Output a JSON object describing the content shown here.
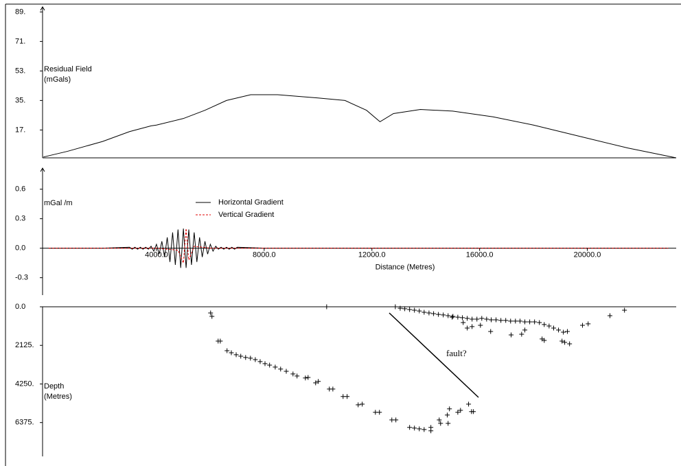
{
  "chart_data": [
    {
      "type": "line",
      "y_label": [
        "Residual Field",
        "(mGals)"
      ],
      "xlim": [
        -230,
        23300
      ],
      "ylim": [
        0,
        90
      ],
      "yticks": [
        {
          "value": 89,
          "label": "89."
        },
        {
          "value": 71,
          "label": "71."
        },
        {
          "value": 53,
          "label": "53."
        },
        {
          "value": 35,
          "label": "35."
        },
        {
          "value": 17,
          "label": "17."
        }
      ],
      "series": [
        {
          "color": "#000000",
          "x": [
            -200,
            700,
            2000,
            3000,
            3800,
            4000,
            5000,
            5800,
            6600,
            7500,
            8500,
            10000,
            11000,
            11800,
            12300,
            12800,
            13800,
            15000,
            16500,
            18000,
            20000,
            21500,
            23300
          ],
          "values": [
            0.5,
            4,
            10,
            16,
            19.5,
            20,
            24,
            29,
            35,
            38.5,
            38.5,
            36.5,
            35,
            29,
            22,
            27,
            29.5,
            28.5,
            25,
            20,
            12,
            6,
            0
          ]
        }
      ]
    },
    {
      "type": "line",
      "y_label": [
        "mGal /m"
      ],
      "x_label": "Distance (Metres)",
      "xlim": [
        -230,
        23300
      ],
      "ylim": [
        -0.47,
        0.8
      ],
      "xticks": [
        {
          "value": 4000,
          "label": "4000.0"
        },
        {
          "value": 8000,
          "label": "8000.0"
        },
        {
          "value": 12000,
          "label": "12000.0"
        },
        {
          "value": 16000,
          "label": "16000.0"
        },
        {
          "value": 20000,
          "label": "20000.0"
        }
      ],
      "yticks": [
        0.6,
        0.3,
        {
          "value": 0,
          "label": "0.0"
        },
        -0.3
      ],
      "legend": true,
      "series": [
        {
          "name": "Horizontal Gradient",
          "color": "#000000",
          "dashed": false,
          "x": [
            0,
            1000,
            2000,
            3000,
            3100,
            3200,
            3300,
            3400,
            3500,
            3600,
            3700,
            3800,
            3900,
            4000,
            4100,
            4200,
            4300,
            4400,
            4500,
            4600,
            4700,
            4800,
            4900,
            5000,
            5100,
            5200,
            5300,
            5400,
            5500,
            5600,
            5700,
            5800,
            5900,
            6000,
            6100,
            6200,
            6300,
            6400,
            6500,
            6600,
            6700,
            6800,
            6900,
            7000,
            8000,
            9000,
            10000,
            11000,
            12000,
            13000,
            14000,
            15000,
            16000,
            17000,
            18000,
            19000,
            20000,
            21000,
            22000,
            23000
          ],
          "values": [
            0,
            0,
            0,
            0.01,
            -0.01,
            0.01,
            -0.01,
            0.01,
            -0.01,
            0.01,
            -0.01,
            0.02,
            -0.03,
            0.04,
            -0.06,
            0.07,
            -0.09,
            0.11,
            -0.14,
            0.16,
            -0.17,
            0.19,
            -0.2,
            0.2,
            -0.2,
            0.19,
            -0.17,
            0.16,
            -0.14,
            0.11,
            -0.09,
            0.07,
            -0.06,
            0.04,
            -0.03,
            0.02,
            -0.01,
            0.01,
            -0.01,
            0.01,
            -0.01,
            0.01,
            -0.01,
            0.01,
            0,
            0,
            0,
            0,
            0,
            0,
            0,
            0,
            0,
            0,
            0,
            0,
            0,
            0,
            0,
            0
          ]
        },
        {
          "name": "Vertical Gradient",
          "color": "#e00000",
          "dashed": true,
          "x": [
            0,
            4000,
            4800,
            5000,
            5100,
            5200,
            5400,
            6000,
            23000
          ],
          "values": [
            0,
            0,
            -0.02,
            -0.15,
            0.2,
            -0.12,
            0.02,
            0,
            0
          ]
        }
      ]
    },
    {
      "type": "scatter",
      "y_label": [
        "Depth",
        "(Metres)"
      ],
      "annotation": "fault?",
      "xlim": [
        -230,
        23300
      ],
      "ylim": [
        0,
        8200
      ],
      "y_inverted": true,
      "color": "#000000",
      "yticks": [
        {
          "value": 0,
          "label": "0.0"
        },
        {
          "value": 2125,
          "label": "2125."
        },
        {
          "value": 4250,
          "label": "4250."
        },
        {
          "value": 6375,
          "label": "6375."
        }
      ],
      "x": [
        6010,
        6060,
        6290,
        6370,
        6620,
        6780,
        6960,
        7130,
        7310,
        7490,
        7670,
        7850,
        8030,
        8200,
        8410,
        8610,
        8820,
        9070,
        9220,
        9530,
        9630,
        9910,
        10010,
        10420,
        10550,
        10930,
        11080,
        11490,
        11640,
        12130,
        12280,
        12740,
        12890,
        13400,
        13580,
        13760,
        13940,
        14190,
        14190,
        14550,
        14830,
        14500,
        14800,
        15190,
        15290,
        15700,
        15770,
        15590,
        14880,
        10320,
        12870,
        13050,
        13220,
        13400,
        13580,
        13760,
        13940,
        14120,
        14290,
        14470,
        14650,
        14830,
        15010,
        15190,
        15360,
        15540,
        15720,
        15900,
        16080,
        16260,
        16430,
        16610,
        16790,
        16970,
        17150,
        17330,
        17500,
        17680,
        17860,
        18040,
        18220,
        18400,
        18580,
        18750,
        18930,
        19110,
        19260,
        14980,
        15390,
        15540,
        15720,
        16030,
        16410,
        17170,
        17560,
        17680,
        18320,
        18400,
        19060,
        19160,
        19340,
        19820,
        20030,
        20840,
        21380
      ],
      "values": [
        340,
        530,
        1890,
        1890,
        2420,
        2530,
        2640,
        2720,
        2790,
        2830,
        2910,
        3020,
        3130,
        3210,
        3320,
        3430,
        3550,
        3700,
        3810,
        3920,
        3890,
        4190,
        4110,
        4530,
        4530,
        4940,
        4940,
        5400,
        5360,
        5810,
        5810,
        6230,
        6230,
        6640,
        6680,
        6720,
        6760,
        6830,
        6640,
        6420,
        6420,
        6230,
        5960,
        5810,
        5700,
        5770,
        5770,
        5360,
        5620,
        0,
        0,
        80,
        110,
        150,
        190,
        230,
        300,
        340,
        380,
        420,
        450,
        490,
        530,
        570,
        600,
        640,
        680,
        680,
        640,
        680,
        720,
        720,
        750,
        750,
        790,
        790,
        790,
        830,
        830,
        830,
        870,
        980,
        1060,
        1170,
        1280,
        1400,
        1360,
        570,
        870,
        1170,
        1090,
        1020,
        1360,
        1550,
        1510,
        1280,
        1770,
        1850,
        1890,
        1960,
        2040,
        1020,
        940,
        490,
        190
      ]
    }
  ]
}
